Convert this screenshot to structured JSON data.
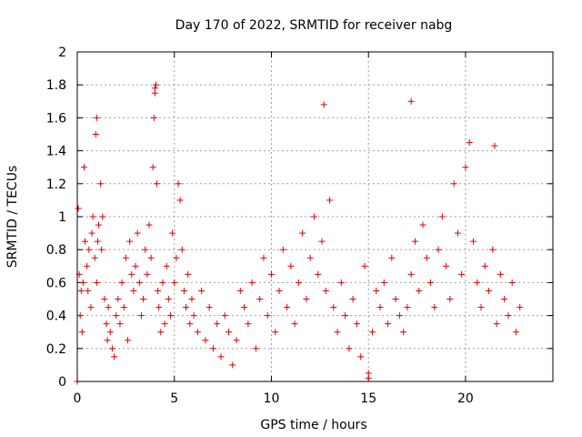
{
  "chart_data": {
    "type": "scatter",
    "title": "Day 170 of 2022, SRMTID for receiver nabg",
    "xlabel": "GPS time / hours",
    "ylabel": "SRMTID / TECUs",
    "xlim": [
      0,
      24.5
    ],
    "ylim": [
      0,
      2
    ],
    "xticks": [
      0,
      5,
      10,
      15,
      20
    ],
    "xtick_labels": [
      "0",
      "5",
      "10",
      "15",
      "20"
    ],
    "yticks": [
      0,
      0.2,
      0.4,
      0.6,
      0.8,
      1,
      1.2,
      1.4,
      1.6,
      1.8,
      2
    ],
    "ytick_labels": [
      "0",
      "0.2",
      "0.4",
      "0.6",
      "0.8",
      "1",
      "1.2",
      "1.4",
      "1.6",
      "1.8",
      "2"
    ],
    "grid": true,
    "marker": "+",
    "color": "#e00000",
    "series": [
      {
        "name": "nabg",
        "x": [
          0.0,
          0.05,
          0.1,
          0.15,
          0.2,
          0.25,
          0.3,
          0.35,
          0.4,
          0.5,
          0.55,
          0.6,
          0.7,
          0.75,
          0.8,
          0.9,
          0.95,
          1.0,
          1.0,
          1.05,
          1.1,
          1.2,
          1.25,
          1.3,
          1.4,
          1.5,
          1.55,
          1.6,
          1.7,
          1.8,
          1.9,
          2.0,
          2.1,
          2.2,
          2.3,
          2.4,
          2.5,
          2.6,
          2.7,
          2.8,
          2.9,
          3.0,
          3.1,
          3.2,
          3.3,
          3.4,
          3.5,
          3.6,
          3.7,
          3.8,
          3.9,
          3.95,
          4.0,
          4.05,
          4.1,
          4.15,
          4.2,
          4.3,
          4.4,
          4.5,
          4.6,
          4.7,
          4.8,
          4.9,
          5.0,
          5.1,
          5.2,
          5.3,
          5.4,
          5.5,
          5.6,
          5.7,
          5.8,
          5.9,
          6.0,
          6.2,
          6.4,
          6.6,
          6.8,
          7.0,
          7.2,
          7.4,
          7.6,
          7.8,
          8.0,
          8.2,
          8.4,
          8.6,
          8.8,
          9.0,
          9.2,
          9.4,
          9.6,
          9.8,
          10.0,
          10.2,
          10.4,
          10.6,
          10.8,
          11.0,
          11.2,
          11.4,
          11.6,
          11.8,
          12.0,
          12.2,
          12.4,
          12.6,
          12.8,
          13.0,
          13.2,
          13.4,
          13.6,
          13.8,
          14.0,
          14.2,
          14.4,
          14.6,
          14.8,
          15.0,
          15.2,
          15.4,
          15.6,
          15.8,
          16.0,
          16.2,
          16.4,
          16.6,
          16.8,
          17.0,
          17.2,
          17.4,
          17.6,
          17.8,
          18.0,
          18.2,
          18.4,
          18.6,
          18.8,
          19.0,
          19.2,
          19.4,
          19.6,
          19.8,
          20.0,
          20.2,
          20.4,
          20.6,
          20.8,
          21.0,
          21.2,
          21.4,
          21.6,
          21.8,
          22.0,
          22.2,
          22.4,
          22.6,
          22.8,
          12.7,
          17.2,
          4.0,
          15.0,
          21.5
        ],
        "y": [
          0.0,
          1.05,
          0.65,
          0.4,
          0.55,
          0.3,
          0.6,
          1.3,
          0.85,
          0.7,
          0.55,
          0.8,
          0.45,
          0.9,
          1.0,
          0.75,
          1.5,
          1.6,
          0.6,
          0.85,
          0.95,
          1.2,
          0.8,
          1.0,
          0.5,
          0.35,
          0.25,
          0.45,
          0.3,
          0.2,
          0.15,
          0.4,
          0.5,
          0.35,
          0.6,
          0.45,
          0.75,
          0.25,
          0.85,
          0.65,
          0.55,
          0.7,
          0.9,
          0.6,
          0.4,
          0.5,
          0.8,
          0.65,
          0.95,
          0.75,
          1.3,
          1.6,
          1.75,
          1.8,
          1.2,
          0.55,
          0.45,
          0.3,
          0.6,
          0.35,
          0.7,
          0.5,
          0.4,
          0.9,
          0.6,
          0.75,
          1.2,
          1.1,
          0.8,
          0.55,
          0.45,
          0.65,
          0.35,
          0.5,
          0.4,
          0.3,
          0.55,
          0.25,
          0.45,
          0.2,
          0.35,
          0.15,
          0.4,
          0.3,
          0.1,
          0.25,
          0.55,
          0.45,
          0.35,
          0.6,
          0.2,
          0.5,
          0.75,
          0.4,
          0.65,
          0.3,
          0.55,
          0.8,
          0.45,
          0.7,
          0.35,
          0.6,
          0.9,
          0.5,
          0.75,
          1.0,
          0.65,
          0.85,
          0.55,
          1.1,
          0.45,
          0.3,
          0.6,
          0.4,
          0.2,
          0.5,
          0.35,
          0.15,
          0.7,
          0.05,
          0.3,
          0.55,
          0.45,
          0.6,
          0.35,
          0.75,
          0.5,
          0.4,
          0.3,
          0.45,
          0.65,
          0.85,
          0.55,
          0.95,
          0.75,
          0.6,
          0.45,
          0.8,
          1.0,
          0.7,
          0.5,
          1.2,
          0.9,
          0.65,
          1.3,
          1.45,
          0.85,
          0.6,
          0.45,
          0.7,
          0.55,
          0.8,
          0.35,
          0.65,
          0.5,
          0.4,
          0.6,
          0.3,
          0.45,
          1.68,
          1.7,
          1.78,
          0.02,
          1.43
        ]
      }
    ]
  }
}
